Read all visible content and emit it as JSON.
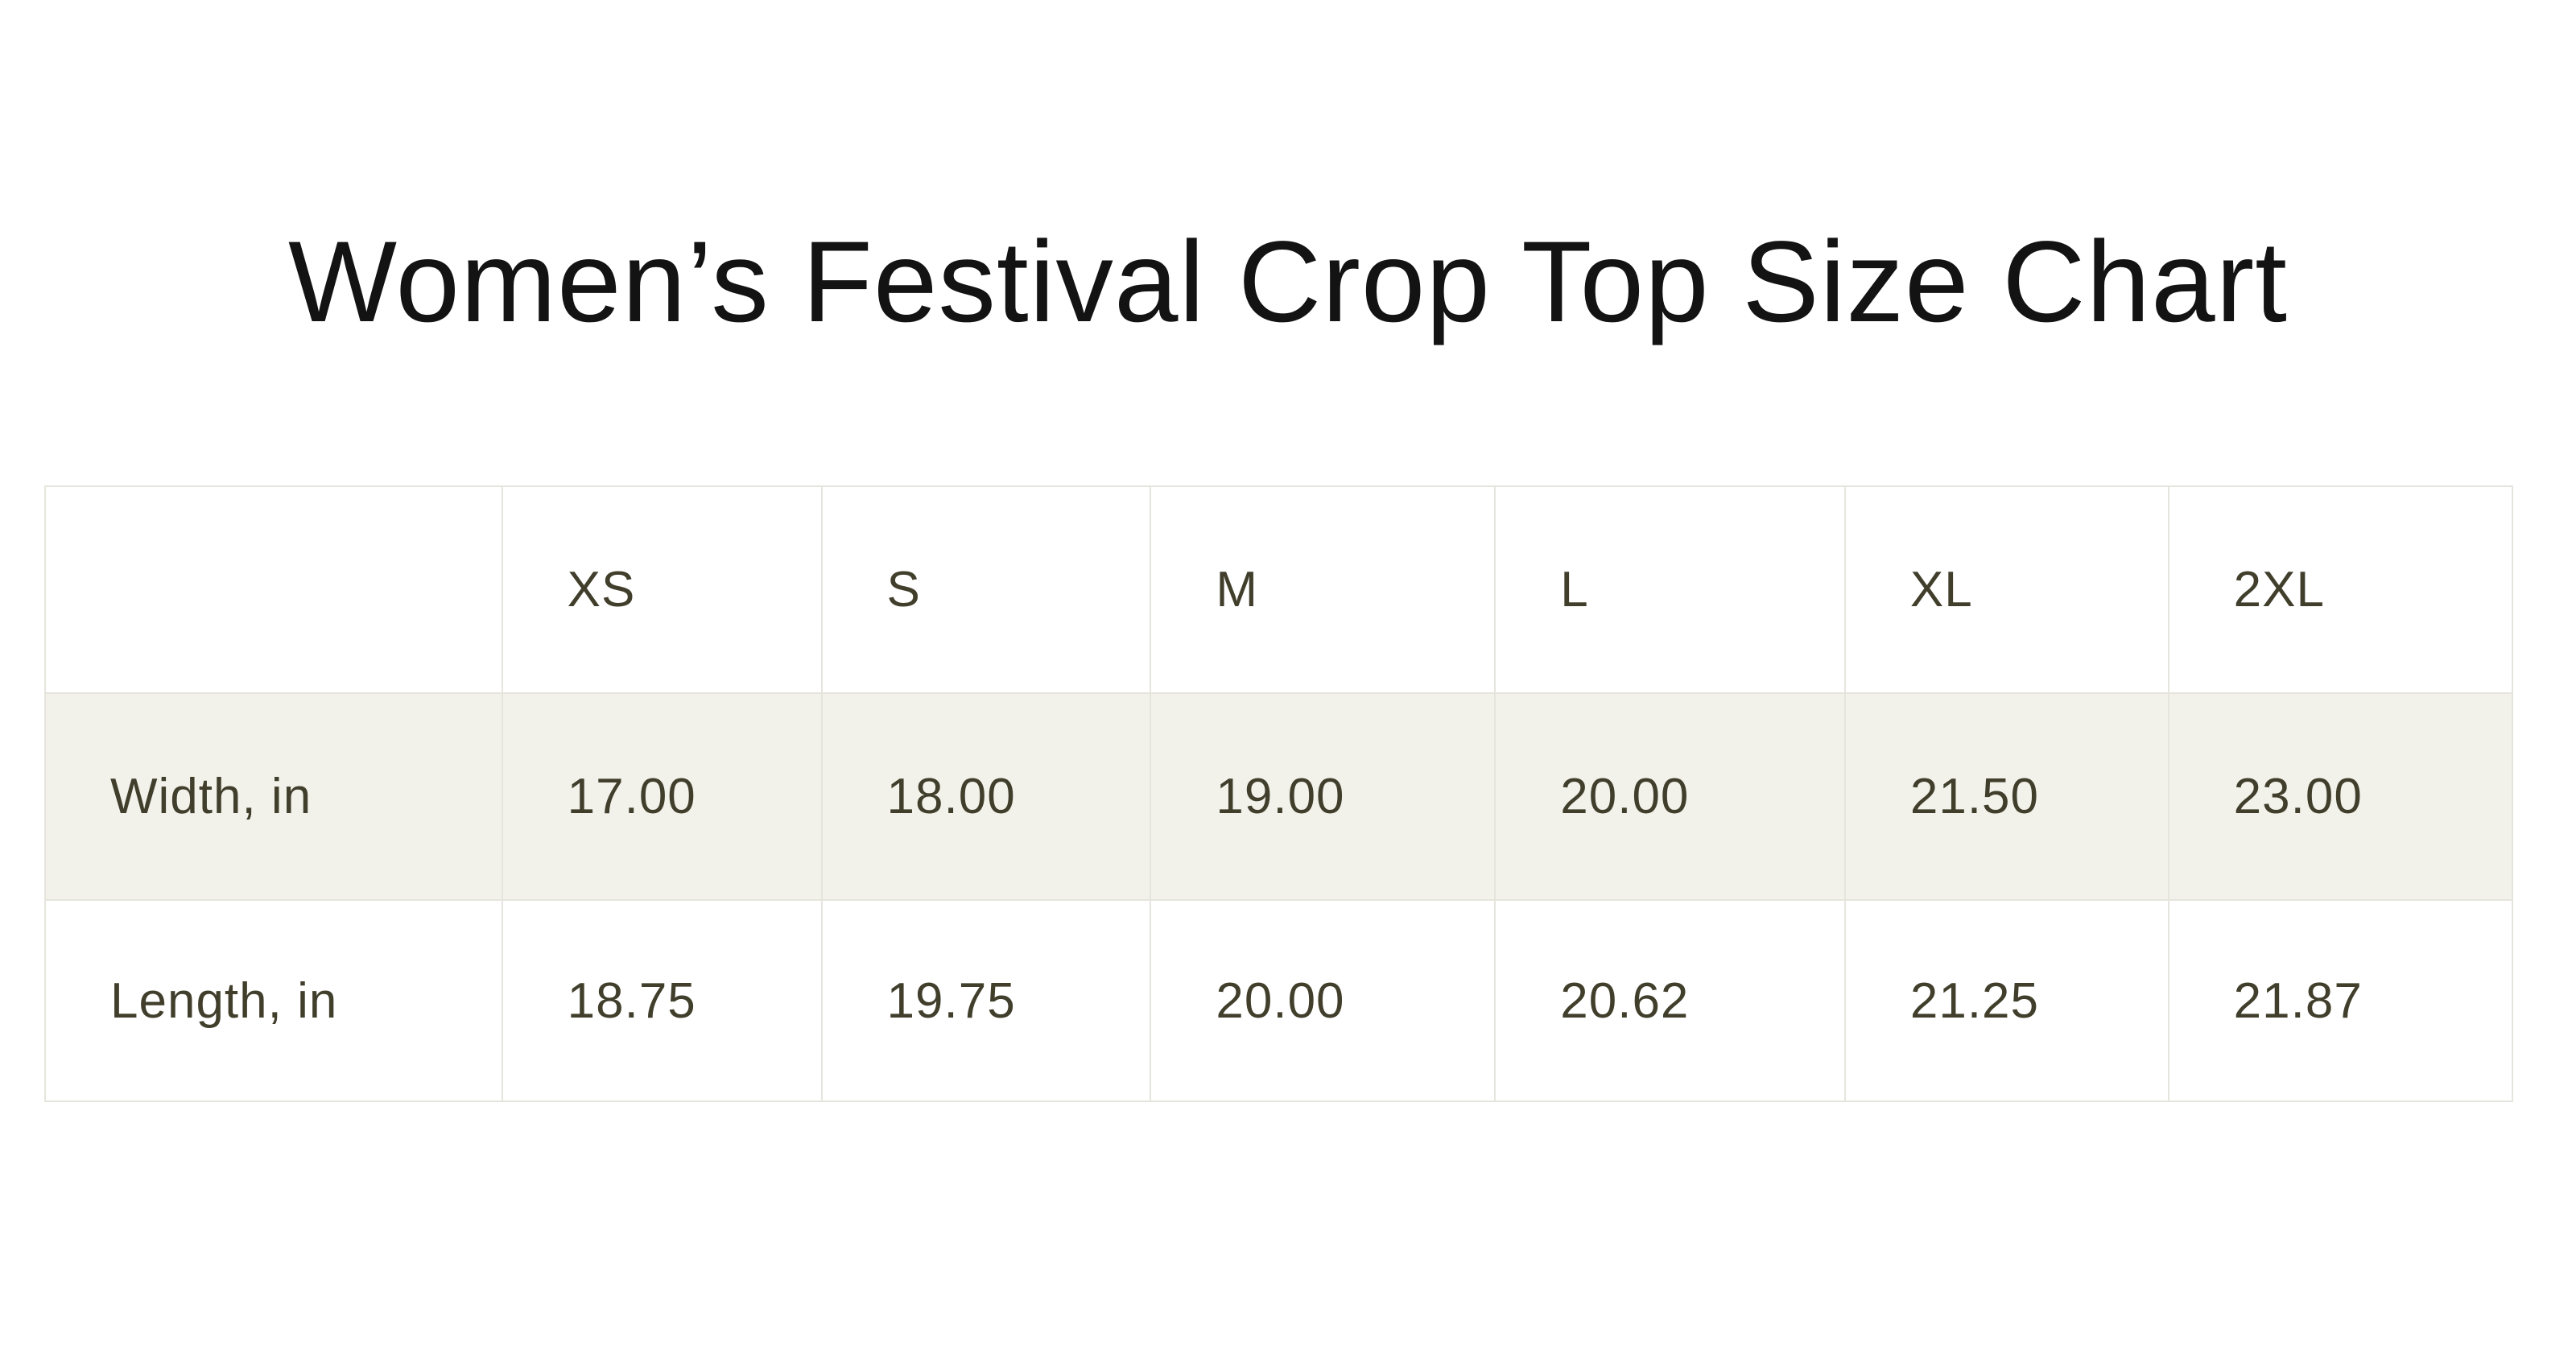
{
  "page": {
    "title": "Women’s Festival Crop Top Size Chart"
  },
  "colors": {
    "page_background": "#ffffff",
    "title_text": "#131313",
    "cell_text": "#413f2c",
    "table_border": "#e6e5dd",
    "shaded_row_background": "#f2f1ea"
  },
  "size_table": {
    "columns": [
      "",
      "XS",
      "S",
      "M",
      "L",
      "XL",
      "2XL"
    ],
    "rows": [
      {
        "label": "Width, in",
        "values": [
          "17.00",
          "18.00",
          "19.00",
          "20.00",
          "21.50",
          "23.00"
        ]
      },
      {
        "label": "Length, in",
        "values": [
          "18.75",
          "19.75",
          "20.00",
          "20.62",
          "21.25",
          "21.87"
        ]
      }
    ]
  },
  "chart_data": {
    "type": "table",
    "title": "Women’s Festival Crop Top Size Chart",
    "categories": [
      "XS",
      "S",
      "M",
      "L",
      "XL",
      "2XL"
    ],
    "series": [
      {
        "name": "Width, in",
        "values": [
          17.0,
          18.0,
          19.0,
          20.0,
          21.5,
          23.0
        ]
      },
      {
        "name": "Length, in",
        "values": [
          18.75,
          19.75,
          20.0,
          20.62,
          21.25,
          21.87
        ]
      }
    ],
    "units": "inches",
    "layout": {
      "header_row": true,
      "shaded_rows": [
        "Width, in"
      ],
      "grid": true
    }
  }
}
